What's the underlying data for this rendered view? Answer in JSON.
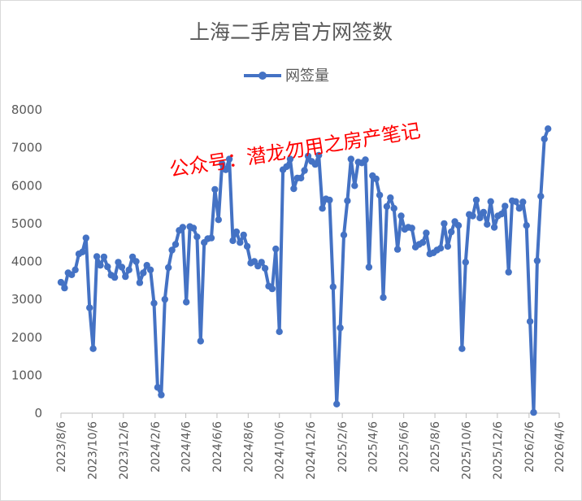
{
  "chart_data": {
    "type": "line",
    "title": "上海二手房官方网签数",
    "watermark": "公众号：潜龙勿用之房产笔记",
    "series": [
      {
        "name": "网签量",
        "color": "#4472C4",
        "x": [
          "2023-08-06",
          "2023-08-13",
          "2023-08-20",
          "2023-08-27",
          "2023-09-03",
          "2023-09-10",
          "2023-09-17",
          "2023-09-24",
          "2023-10-01",
          "2023-10-08",
          "2023-10-15",
          "2023-10-22",
          "2023-10-29",
          "2023-11-05",
          "2023-11-12",
          "2023-11-19",
          "2023-11-26",
          "2023-12-03",
          "2023-12-10",
          "2023-12-17",
          "2023-12-24",
          "2023-12-31",
          "2024-01-07",
          "2024-01-14",
          "2024-01-21",
          "2024-01-28",
          "2024-02-04",
          "2024-02-11",
          "2024-02-18",
          "2024-02-25",
          "2024-03-03",
          "2024-03-10",
          "2024-03-17",
          "2024-03-24",
          "2024-03-31",
          "2024-04-07",
          "2024-04-14",
          "2024-04-21",
          "2024-04-28",
          "2024-05-05",
          "2024-05-12",
          "2024-05-19",
          "2024-05-26",
          "2024-06-02",
          "2024-06-09",
          "2024-06-16",
          "2024-06-23",
          "2024-06-30",
          "2024-07-07",
          "2024-07-14",
          "2024-07-21",
          "2024-07-28",
          "2024-08-04",
          "2024-08-11",
          "2024-08-18",
          "2024-08-25",
          "2024-09-01",
          "2024-09-08",
          "2024-09-15",
          "2024-09-22",
          "2024-09-29",
          "2024-10-06",
          "2024-10-13",
          "2024-10-20",
          "2024-10-27",
          "2024-11-03",
          "2024-11-10",
          "2024-11-17",
          "2024-11-24",
          "2024-12-01",
          "2024-12-08",
          "2024-12-15",
          "2024-12-22",
          "2024-12-29",
          "2025-01-05",
          "2025-01-12",
          "2025-01-19",
          "2025-01-26",
          "2025-02-02",
          "2025-02-09",
          "2025-02-16",
          "2025-02-23",
          "2025-03-02",
          "2025-03-09",
          "2025-03-16",
          "2025-03-23",
          "2025-03-30",
          "2025-04-06",
          "2025-04-13",
          "2025-04-20",
          "2025-04-27",
          "2025-05-04",
          "2025-05-11",
          "2025-05-18",
          "2025-05-25",
          "2025-06-01",
          "2025-06-08",
          "2025-06-15",
          "2025-06-22",
          "2025-06-29",
          "2025-07-06",
          "2025-07-13",
          "2025-07-20",
          "2025-07-27",
          "2025-08-03",
          "2025-08-10",
          "2025-08-17",
          "2025-08-24",
          "2025-08-31",
          "2025-09-07",
          "2025-09-14",
          "2025-09-21",
          "2025-09-28",
          "2025-10-05",
          "2025-10-12",
          "2025-10-19",
          "2025-10-26",
          "2025-11-02",
          "2025-11-09",
          "2025-11-16",
          "2025-11-23",
          "2025-11-30",
          "2025-12-07",
          "2025-12-14",
          "2025-12-21",
          "2025-12-28",
          "2026-01-04",
          "2026-01-11",
          "2026-01-18",
          "2026-01-25",
          "2026-02-01",
          "2026-02-08",
          "2026-02-15",
          "2026-02-22",
          "2026-03-01",
          "2026-03-08",
          "2026-03-15"
        ],
        "values": [
          3450,
          3300,
          3700,
          3650,
          3780,
          4200,
          4250,
          4620,
          2780,
          1700,
          4130,
          3900,
          4120,
          3860,
          3640,
          3580,
          3980,
          3850,
          3600,
          3780,
          4120,
          4000,
          3440,
          3700,
          3900,
          3780,
          2900,
          680,
          480,
          3000,
          3840,
          4300,
          4450,
          4820,
          4900,
          2930,
          4920,
          4880,
          4650,
          1900,
          4500,
          4600,
          4620,
          5900,
          5100,
          6580,
          6420,
          6700,
          4550,
          4780,
          4500,
          4700,
          4400,
          3960,
          4000,
          3880,
          3980,
          3820,
          3350,
          3280,
          4330,
          2150,
          6420,
          6500,
          6700,
          5920,
          6200,
          6200,
          6400,
          6780,
          6640,
          6560,
          6800,
          5400,
          5650,
          5620,
          3330,
          240,
          2250,
          4700,
          5600,
          6700,
          6000,
          6620,
          6600,
          6680,
          3850,
          6260,
          6180,
          5750,
          3050,
          5450,
          5680,
          5400,
          4320,
          5200,
          4850,
          4900,
          4880,
          4380,
          4450,
          4500,
          4750,
          4200,
          4230,
          4300,
          4350,
          5000,
          4400,
          4780,
          5050,
          4950,
          1700,
          3980,
          5240,
          5200,
          5620,
          5150,
          5300,
          4980,
          5580,
          4900,
          5200,
          5250,
          5460,
          3720,
          5600,
          5580,
          5400,
          5570,
          4950,
          2420,
          20,
          4020,
          5720,
          7230,
          7500
        ]
      }
    ],
    "ylim": [
      0,
      8000
    ],
    "yticks": [
      0,
      1000,
      2000,
      3000,
      4000,
      5000,
      6000,
      7000,
      8000
    ],
    "xlim": [
      "2023-08-06",
      "2026-04-06"
    ],
    "xticks": [
      "2023/8/6",
      "2023/10/6",
      "2023/12/6",
      "2024/2/6",
      "2024/4/6",
      "2024/6/6",
      "2024/8/6",
      "2024/10/6",
      "2024/12/6",
      "2025/2/6",
      "2025/4/6",
      "2025/6/6",
      "2025/8/6",
      "2025/10/6",
      "2025/12/6",
      "2026/2/6",
      "2026/4/6"
    ],
    "legend": "top-center",
    "grid": false
  }
}
